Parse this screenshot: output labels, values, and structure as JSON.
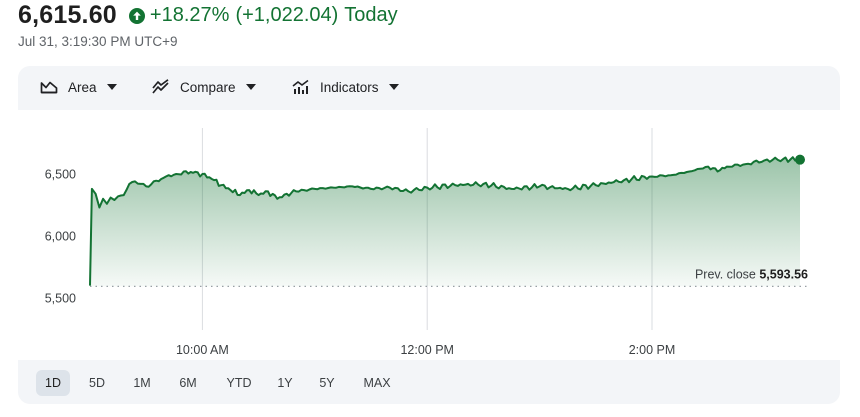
{
  "quote": {
    "price": "6,615.60",
    "change_pct": "+18.27%",
    "change_abs": "(+1,022.04)",
    "period": "Today",
    "timestamp": "Jul 31, 3:19:30 PM UTC+9",
    "accent_color": "#137333"
  },
  "toolbar": {
    "area_label": "Area",
    "compare_label": "Compare",
    "indicators_label": "Indicators"
  },
  "chart_data": {
    "type": "area",
    "x_labels": [
      "10:00 AM",
      "12:00 PM",
      "2:00 PM"
    ],
    "y_ticks": [
      "6,500",
      "6,000",
      "5,500"
    ],
    "ylim": [
      5500,
      7000
    ],
    "prev_close_label": "Prev. close",
    "prev_close_value": "5,593.56",
    "prev_close": 5593.56,
    "last_value": 6615.6,
    "line_color": "#137333",
    "series": [
      {
        "x": [
          "9:00",
          "9:01",
          "9:03",
          "9:05",
          "9:07",
          "9:09",
          "9:11",
          "9:13",
          "9:15",
          "9:18",
          "9:21",
          "9:24",
          "9:27",
          "9:30",
          "9:34",
          "9:38",
          "9:42",
          "9:46",
          "9:50",
          "9:55",
          "10:00",
          "10:05",
          "10:10",
          "10:15",
          "10:20",
          "10:25",
          "10:30",
          "10:35",
          "10:40",
          "10:45",
          "10:50",
          "11:00",
          "11:10",
          "11:20",
          "11:30",
          "11:40",
          "11:50",
          "12:00",
          "12:15",
          "12:30",
          "12:45",
          "13:00",
          "13:15",
          "13:30",
          "13:45",
          "14:00",
          "14:10",
          "14:20",
          "14:30",
          "14:35",
          "14:40",
          "14:50",
          "15:00",
          "15:10",
          "15:19"
        ],
        "values": [
          5600,
          6380,
          6340,
          6230,
          6300,
          6260,
          6310,
          6290,
          6320,
          6330,
          6420,
          6440,
          6420,
          6400,
          6440,
          6460,
          6490,
          6500,
          6520,
          6510,
          6500,
          6460,
          6410,
          6370,
          6330,
          6370,
          6330,
          6360,
          6300,
          6340,
          6360,
          6380,
          6390,
          6400,
          6380,
          6390,
          6360,
          6390,
          6410,
          6420,
          6380,
          6400,
          6380,
          6410,
          6450,
          6480,
          6490,
          6520,
          6560,
          6520,
          6560,
          6580,
          6610,
          6620,
          6615.6
        ]
      }
    ]
  },
  "ranges": {
    "items": [
      "1D",
      "5D",
      "1M",
      "6M",
      "YTD",
      "1Y",
      "5Y",
      "MAX"
    ],
    "selected": "1D"
  }
}
